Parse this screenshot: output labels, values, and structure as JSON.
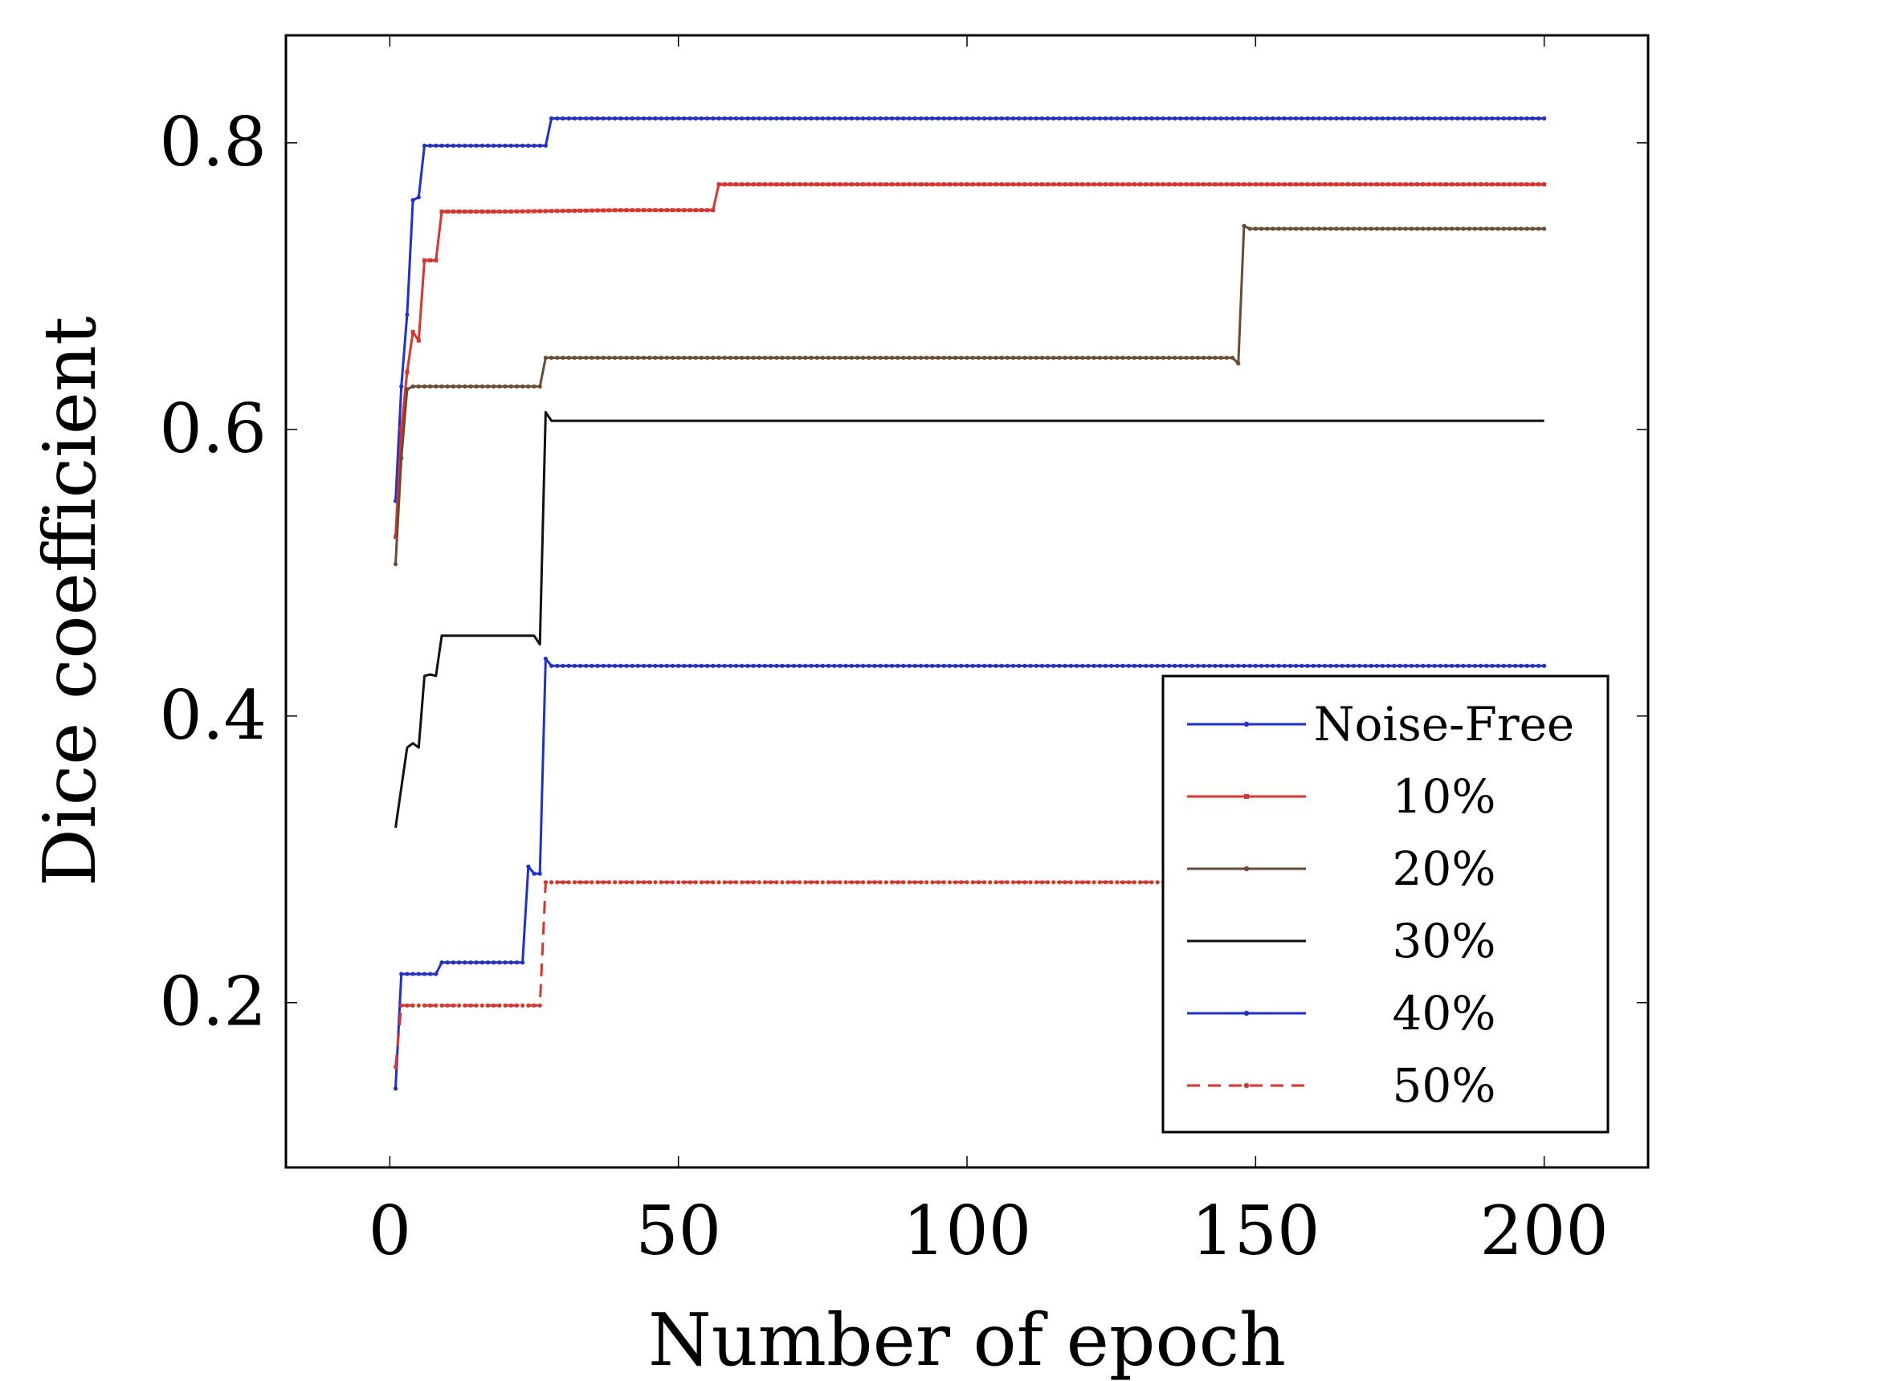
{
  "chart_data": {
    "type": "line",
    "title": "",
    "xlabel": "Number of epoch",
    "ylabel": "Dice coefficient",
    "xlim": [
      -18,
      218
    ],
    "ylim": [
      0.085,
      0.875
    ],
    "xticks": [
      0,
      50,
      100,
      150,
      200
    ],
    "xtick_labels": [
      "0",
      "50",
      "100",
      "150",
      "200"
    ],
    "yticks": [
      0.2,
      0.4,
      0.6,
      0.8
    ],
    "ytick_labels": [
      "0.2",
      "0.4",
      "0.6",
      "0.8"
    ],
    "grid": false,
    "legend_position": "bottom-right",
    "series": [
      {
        "name": "Noise-Free",
        "color": "#1f2fd6",
        "dash": "solid",
        "marker": "dot",
        "points": [
          [
            1,
            0.55
          ],
          [
            2,
            0.63
          ],
          [
            3,
            0.68
          ],
          [
            4,
            0.76
          ],
          [
            5,
            0.762
          ],
          [
            6,
            0.798
          ],
          [
            10,
            0.798
          ],
          [
            20,
            0.798
          ],
          [
            27,
            0.798
          ],
          [
            28,
            0.817
          ],
          [
            50,
            0.817
          ],
          [
            100,
            0.817
          ],
          [
            150,
            0.817
          ],
          [
            200,
            0.817
          ]
        ]
      },
      {
        "name": "10%",
        "color": "#e0322a",
        "dash": "solid",
        "marker": "square",
        "points": [
          [
            1,
            0.525
          ],
          [
            2,
            0.6
          ],
          [
            3,
            0.64
          ],
          [
            4,
            0.668
          ],
          [
            5,
            0.662
          ],
          [
            6,
            0.718
          ],
          [
            8,
            0.718
          ],
          [
            9,
            0.752
          ],
          [
            20,
            0.752
          ],
          [
            40,
            0.753
          ],
          [
            56,
            0.753
          ],
          [
            57,
            0.771
          ],
          [
            100,
            0.771
          ],
          [
            150,
            0.771
          ],
          [
            200,
            0.771
          ]
        ]
      },
      {
        "name": "20%",
        "color": "#6b4a31",
        "dash": "solid",
        "marker": "dot",
        "points": [
          [
            1,
            0.506
          ],
          [
            2,
            0.58
          ],
          [
            3,
            0.628
          ],
          [
            4,
            0.63
          ],
          [
            10,
            0.63
          ],
          [
            20,
            0.63
          ],
          [
            26,
            0.63
          ],
          [
            27,
            0.65
          ],
          [
            50,
            0.65
          ],
          [
            100,
            0.65
          ],
          [
            146,
            0.65
          ],
          [
            147,
            0.646
          ],
          [
            148,
            0.742
          ],
          [
            149,
            0.74
          ],
          [
            200,
            0.74
          ]
        ]
      },
      {
        "name": "30%",
        "color": "#111111",
        "dash": "solid",
        "marker": "none",
        "points": [
          [
            1,
            0.322
          ],
          [
            2,
            0.35
          ],
          [
            3,
            0.378
          ],
          [
            4,
            0.381
          ],
          [
            5,
            0.378
          ],
          [
            6,
            0.428
          ],
          [
            7,
            0.429
          ],
          [
            8,
            0.428
          ],
          [
            9,
            0.456
          ],
          [
            10,
            0.456
          ],
          [
            20,
            0.456
          ],
          [
            25,
            0.456
          ],
          [
            26,
            0.45
          ],
          [
            27,
            0.612
          ],
          [
            28,
            0.606
          ],
          [
            50,
            0.606
          ],
          [
            100,
            0.606
          ],
          [
            150,
            0.606
          ],
          [
            200,
            0.606
          ]
        ]
      },
      {
        "name": "40%",
        "color": "#1f2fd6",
        "dash": "solid",
        "marker": "dot",
        "points": [
          [
            1,
            0.14
          ],
          [
            2,
            0.22
          ],
          [
            3,
            0.22
          ],
          [
            5,
            0.22
          ],
          [
            8,
            0.22
          ],
          [
            9,
            0.228
          ],
          [
            15,
            0.228
          ],
          [
            23,
            0.228
          ],
          [
            24,
            0.295
          ],
          [
            25,
            0.29
          ],
          [
            26,
            0.29
          ],
          [
            27,
            0.44
          ],
          [
            28,
            0.435
          ],
          [
            50,
            0.435
          ],
          [
            100,
            0.435
          ],
          [
            150,
            0.435
          ],
          [
            200,
            0.435
          ]
        ]
      },
      {
        "name": "50%",
        "color": "#e0322a",
        "dash": "dashed",
        "marker": "dot",
        "points": [
          [
            1,
            0.155
          ],
          [
            2,
            0.198
          ],
          [
            10,
            0.198
          ],
          [
            20,
            0.198
          ],
          [
            26,
            0.198
          ],
          [
            27,
            0.284
          ],
          [
            50,
            0.284
          ],
          [
            100,
            0.284
          ],
          [
            150,
            0.284
          ],
          [
            200,
            0.284
          ]
        ]
      }
    ]
  }
}
